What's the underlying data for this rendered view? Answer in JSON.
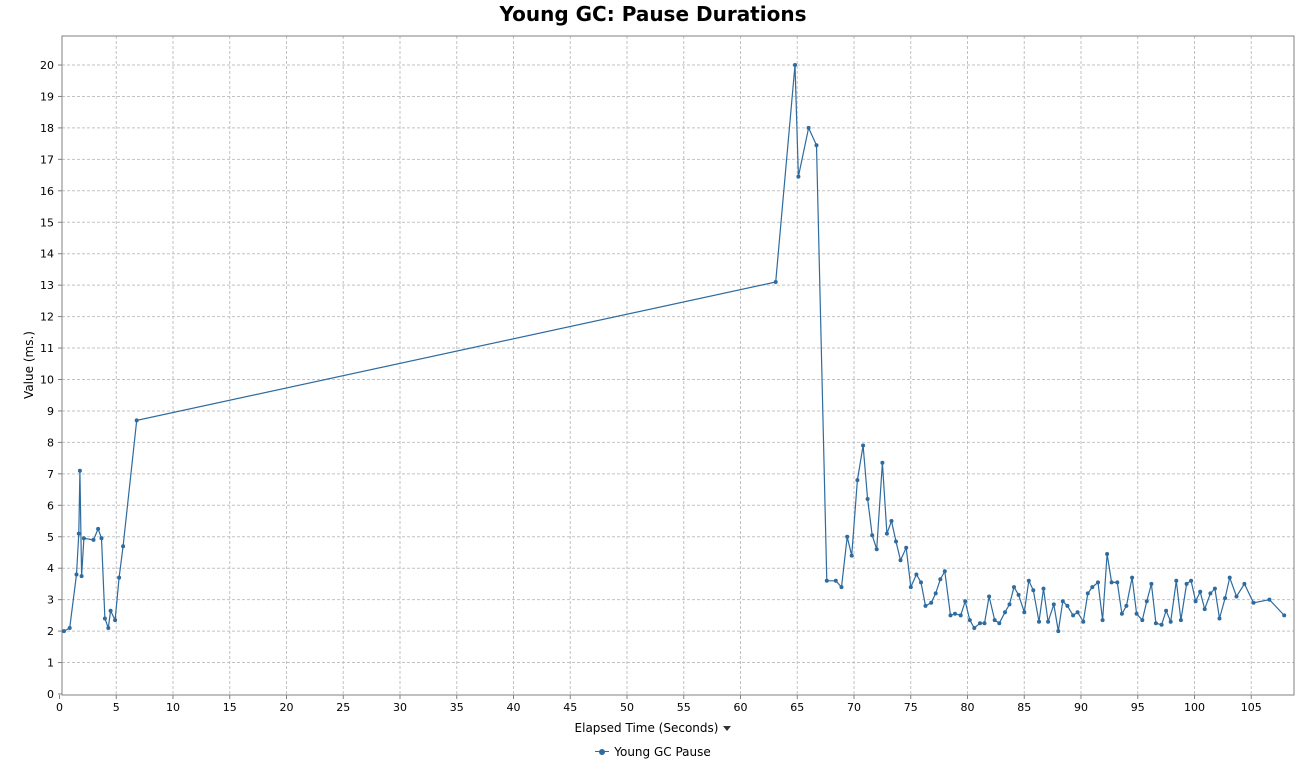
{
  "colors": {
    "series": "#2e6b9e",
    "grid": "#c2c2c2",
    "axis": "#808080"
  },
  "legend_marker_icon": "line-dot-icon",
  "dropdown_icon": "caret-down-icon",
  "chart_data": {
    "type": "line",
    "title": "Young GC: Pause Durations",
    "xlabel": "Elapsed Time (Seconds)",
    "ylabel": "Value (ms.)",
    "xlim": [
      0,
      108.5
    ],
    "ylim": [
      0,
      21
    ],
    "xticks": [
      0,
      5,
      10,
      15,
      20,
      25,
      30,
      35,
      40,
      45,
      50,
      55,
      60,
      65,
      70,
      75,
      80,
      85,
      90,
      95,
      100,
      105
    ],
    "yticks": [
      0,
      1,
      2,
      3,
      4,
      5,
      6,
      7,
      8,
      9,
      10,
      11,
      12,
      13,
      14,
      15,
      16,
      17,
      18,
      19,
      20
    ],
    "grid": true,
    "legend_position": "bottom",
    "series": [
      {
        "name": "Young GC Pause",
        "points": [
          [
            0.4,
            2.0
          ],
          [
            0.9,
            2.1
          ],
          [
            1.5,
            3.8
          ],
          [
            1.7,
            5.1
          ],
          [
            1.8,
            7.1
          ],
          [
            1.95,
            3.75
          ],
          [
            2.15,
            4.95
          ],
          [
            3.0,
            4.9
          ],
          [
            3.4,
            5.25
          ],
          [
            3.7,
            4.95
          ],
          [
            4.0,
            2.4
          ],
          [
            4.3,
            2.1
          ],
          [
            4.5,
            2.65
          ],
          [
            4.9,
            2.35
          ],
          [
            5.25,
            3.7
          ],
          [
            5.6,
            4.7
          ],
          [
            6.8,
            8.7
          ],
          [
            63.1,
            13.1
          ],
          [
            64.8,
            20.0
          ],
          [
            65.1,
            16.45
          ],
          [
            66.0,
            18.0
          ],
          [
            66.7,
            17.45
          ],
          [
            67.6,
            3.6
          ],
          [
            68.4,
            3.6
          ],
          [
            68.9,
            3.4
          ],
          [
            69.4,
            5.0
          ],
          [
            69.8,
            4.4
          ],
          [
            70.3,
            6.8
          ],
          [
            70.8,
            7.9
          ],
          [
            71.2,
            6.2
          ],
          [
            71.6,
            5.05
          ],
          [
            72.0,
            4.6
          ],
          [
            72.5,
            7.35
          ],
          [
            72.9,
            5.1
          ],
          [
            73.3,
            5.5
          ],
          [
            73.7,
            4.85
          ],
          [
            74.1,
            4.25
          ],
          [
            74.6,
            4.65
          ],
          [
            75.0,
            3.4
          ],
          [
            75.5,
            3.8
          ],
          [
            75.9,
            3.55
          ],
          [
            76.3,
            2.8
          ],
          [
            76.8,
            2.9
          ],
          [
            77.2,
            3.2
          ],
          [
            77.6,
            3.65
          ],
          [
            78.0,
            3.9
          ],
          [
            78.5,
            2.5
          ],
          [
            78.9,
            2.55
          ],
          [
            79.4,
            2.5
          ],
          [
            79.8,
            2.95
          ],
          [
            80.2,
            2.35
          ],
          [
            80.6,
            2.1
          ],
          [
            81.1,
            2.25
          ],
          [
            81.5,
            2.25
          ],
          [
            81.9,
            3.1
          ],
          [
            82.4,
            2.35
          ],
          [
            82.8,
            2.25
          ],
          [
            83.3,
            2.6
          ],
          [
            83.7,
            2.85
          ],
          [
            84.1,
            3.4
          ],
          [
            84.5,
            3.15
          ],
          [
            85.0,
            2.6
          ],
          [
            85.4,
            3.6
          ],
          [
            85.8,
            3.3
          ],
          [
            86.3,
            2.3
          ],
          [
            86.7,
            3.35
          ],
          [
            87.1,
            2.3
          ],
          [
            87.6,
            2.85
          ],
          [
            88.0,
            2.0
          ],
          [
            88.4,
            2.95
          ],
          [
            88.8,
            2.8
          ],
          [
            89.3,
            2.5
          ],
          [
            89.7,
            2.6
          ],
          [
            90.2,
            2.3
          ],
          [
            90.6,
            3.2
          ],
          [
            91.0,
            3.4
          ],
          [
            91.5,
            3.55
          ],
          [
            91.9,
            2.35
          ],
          [
            92.3,
            4.45
          ],
          [
            92.7,
            3.55
          ],
          [
            93.2,
            3.55
          ],
          [
            93.6,
            2.55
          ],
          [
            94.0,
            2.8
          ],
          [
            94.5,
            3.7
          ],
          [
            94.9,
            2.55
          ],
          [
            95.4,
            2.35
          ],
          [
            95.8,
            2.95
          ],
          [
            96.2,
            3.5
          ],
          [
            96.6,
            2.25
          ],
          [
            97.1,
            2.2
          ],
          [
            97.5,
            2.65
          ],
          [
            97.9,
            2.3
          ],
          [
            98.4,
            3.6
          ],
          [
            98.8,
            2.35
          ],
          [
            99.3,
            3.5
          ],
          [
            99.7,
            3.6
          ],
          [
            100.1,
            2.95
          ],
          [
            100.5,
            3.25
          ],
          [
            100.9,
            2.7
          ],
          [
            101.4,
            3.2
          ],
          [
            101.8,
            3.35
          ],
          [
            102.2,
            2.4
          ],
          [
            102.7,
            3.05
          ],
          [
            103.1,
            3.7
          ],
          [
            103.7,
            3.1
          ],
          [
            104.4,
            3.5
          ],
          [
            105.2,
            2.9
          ],
          [
            106.6,
            3.0
          ],
          [
            107.9,
            2.5
          ]
        ]
      }
    ]
  }
}
